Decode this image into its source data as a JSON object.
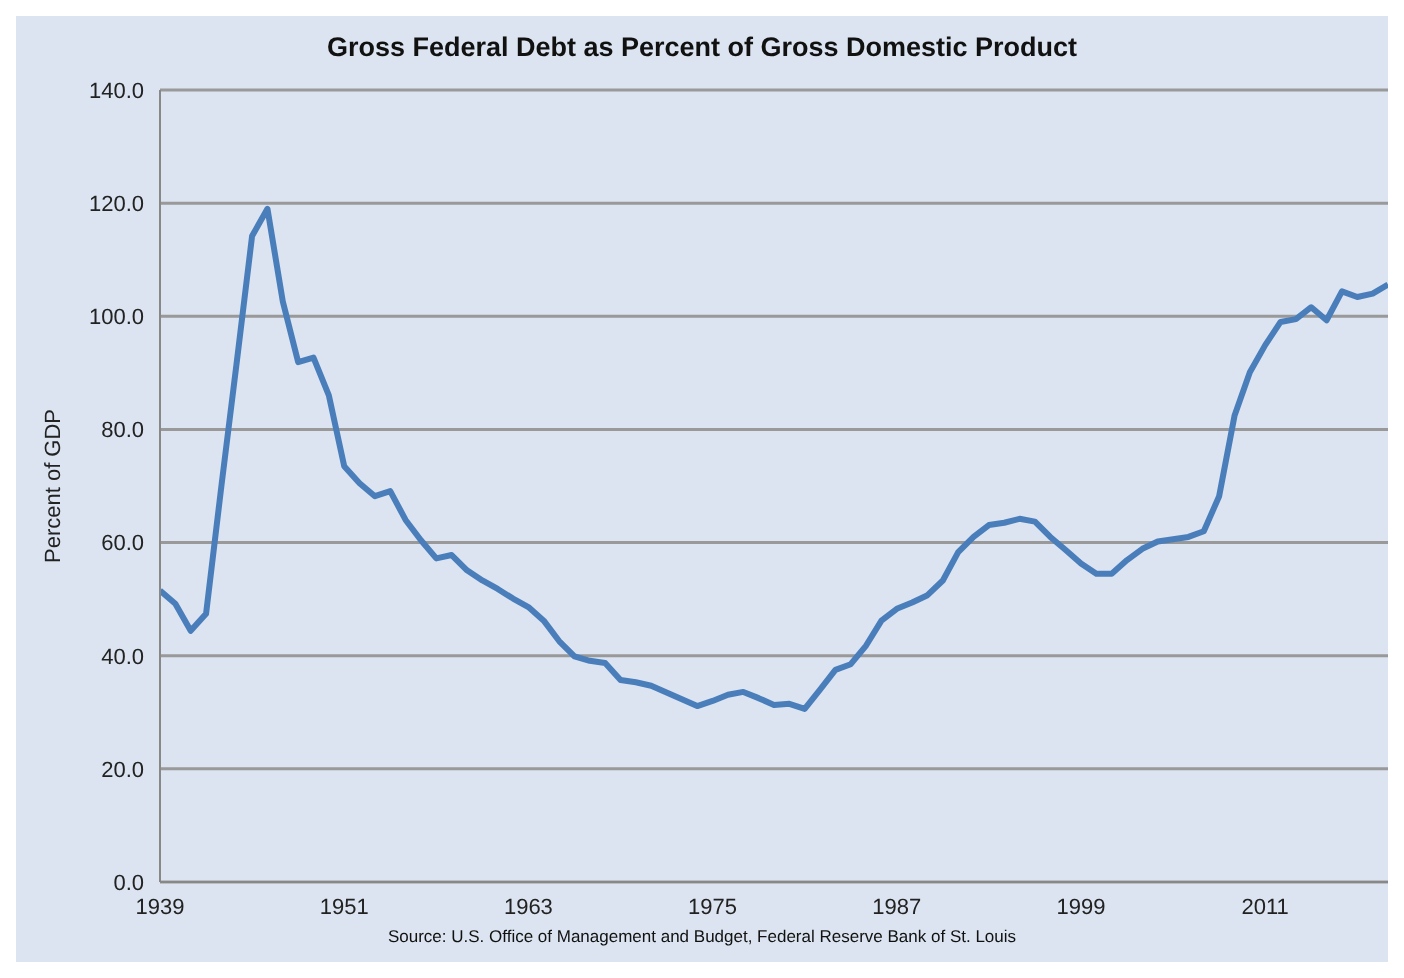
{
  "chart_data": {
    "type": "line",
    "title": "Gross Federal Debt as Percent of Gross Domestic Product",
    "ylabel": "Percent of GDP",
    "annotations": [
      "Source: U.S. Office of Management and Budget, Federal Reserve Bank of St. Louis"
    ],
    "x": [
      1939,
      1940,
      1941,
      1942,
      1943,
      1944,
      1945,
      1946,
      1947,
      1948,
      1949,
      1950,
      1951,
      1952,
      1953,
      1954,
      1955,
      1956,
      1957,
      1958,
      1959,
      1960,
      1961,
      1962,
      1963,
      1964,
      1965,
      1966,
      1967,
      1968,
      1969,
      1970,
      1971,
      1972,
      1973,
      1974,
      1975,
      1976,
      1977,
      1978,
      1979,
      1980,
      1981,
      1982,
      1983,
      1984,
      1985,
      1986,
      1987,
      1988,
      1989,
      1990,
      1991,
      1992,
      1993,
      1994,
      1995,
      1996,
      1997,
      1998,
      1999,
      2000,
      2001,
      2002,
      2003,
      2004,
      2005,
      2006,
      2007,
      2008,
      2009,
      2010,
      2011,
      2012,
      2013,
      2014,
      2015,
      2016,
      2017,
      2018,
      2019
    ],
    "series": [
      {
        "color": "#4a7ebb",
        "values": [
          51.5,
          49.2,
          44.4,
          47.4,
          70,
          91.9,
          114.2,
          119,
          102.6,
          91.9,
          92.7,
          86,
          73.5,
          70.5,
          68.2,
          69.1,
          64,
          60.4,
          57.2,
          57.8,
          55.1,
          53.3,
          51.8,
          50.1,
          48.6,
          46.2,
          42.6,
          39.9,
          39.1,
          38.7,
          35.7,
          35.3,
          34.7,
          33.5,
          32.3,
          31.1,
          32,
          33.1,
          33.6,
          32.5,
          31.3,
          31.5,
          30.6,
          34,
          37.5,
          38.5,
          41.8,
          46.2,
          48.3,
          49.4,
          50.7,
          53.3,
          58.3,
          61,
          63.1,
          63.5,
          64.2,
          63.7,
          61,
          58.7,
          56.3,
          54.5,
          54.5,
          56.9,
          58.9,
          60.2,
          60.6,
          61,
          62,
          68.2,
          82.4,
          90.1,
          94.9,
          99,
          99.5,
          101.6,
          99.3,
          104.4,
          103.4,
          104,
          105.6
        ]
      }
    ],
    "xlim": [
      1939,
      2019
    ],
    "xticks": [
      1939,
      1951,
      1963,
      1975,
      1987,
      1999,
      2011
    ],
    "ylim": [
      0,
      140
    ],
    "yticks": [
      {
        "value": 0,
        "label": "0.0"
      },
      {
        "value": 20,
        "label": "20.0"
      },
      {
        "value": 40,
        "label": "40.0"
      },
      {
        "value": 60,
        "label": "60.0"
      },
      {
        "value": 80,
        "label": "80.0"
      },
      {
        "value": 100,
        "label": "100.0"
      },
      {
        "value": 120,
        "label": "120.0"
      },
      {
        "value": 140,
        "label": "140.0"
      }
    ],
    "grid": "y",
    "legend": false,
    "marker": "none",
    "line_style": "solid"
  }
}
